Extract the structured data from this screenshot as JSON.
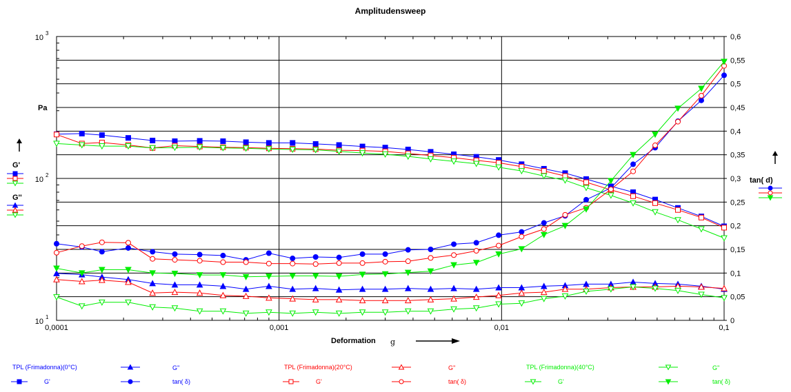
{
  "chart_data": {
    "type": "line",
    "title": "Amplitudensweep",
    "xlabel": "Deformation",
    "xlabel_symbol": "g",
    "x_scale": "log",
    "xlim": [
      0.0001,
      0.1
    ],
    "x_tick_labels": [
      "0,0001",
      "0,001",
      "0,01",
      "0,1"
    ],
    "y_left": {
      "scale": "log",
      "ylim": [
        10,
        1000
      ],
      "unit": "Pa",
      "tick_bases": [
        "10",
        "10",
        "10"
      ],
      "tick_exponents": [
        "1",
        "2",
        "3"
      ],
      "labels": [
        "G'",
        "G''"
      ]
    },
    "y_right": {
      "scale": "linear",
      "ylim": [
        0,
        0.6
      ],
      "label": "tan(  d)",
      "tick_labels": [
        "0",
        "0,05",
        "0,1",
        "0,15",
        "0,2",
        "0,25",
        "0,3",
        "0,35",
        "0,4",
        "0,45",
        "0,5",
        "0,55",
        "0,6"
      ]
    },
    "grid": true,
    "x": [
      0.0001,
      0.00013,
      0.00016,
      0.00021,
      0.00027,
      0.00034,
      0.00044,
      0.00056,
      0.00071,
      0.0009,
      0.00115,
      0.00146,
      0.00186,
      0.00237,
      0.003,
      0.0038,
      0.0048,
      0.0061,
      0.0077,
      0.0097,
      0.0123,
      0.0155,
      0.0193,
      0.024,
      0.031,
      0.039,
      0.049,
      0.062,
      0.079,
      0.1
    ],
    "groups": [
      {
        "name": "TPL (Frimadonna)(0°C)",
        "color": "#0000ff"
      },
      {
        "name": "TPL (Frimadonna)(20°C)",
        "color": "#ff0000"
      },
      {
        "name": "TPL (Frimadonna)(40°C)",
        "color": "#00ee00"
      }
    ],
    "series": [
      {
        "name": "G'",
        "group": 0,
        "axis": "left",
        "marker": "square-filled",
        "color": "#0000ff",
        "values": [
          205,
          207,
          202,
          193,
          185,
          183,
          184,
          183,
          180,
          178,
          178,
          175,
          172,
          168,
          165,
          160,
          154,
          148,
          142,
          135,
          126,
          117,
          109,
          99,
          88,
          80,
          71,
          62,
          54,
          46
        ]
      },
      {
        "name": "G'",
        "group": 1,
        "axis": "left",
        "marker": "square-open",
        "color": "#ff0000",
        "values": [
          204,
          176,
          179,
          172,
          164,
          170,
          168,
          166,
          165,
          163,
          162,
          161,
          158,
          157,
          155,
          150,
          145,
          140,
          134,
          129,
          121,
          113,
          104,
          94,
          83,
          75,
          67,
          60,
          53,
          45
        ]
      },
      {
        "name": "G'",
        "group": 2,
        "axis": "left",
        "marker": "triangle-down-open",
        "color": "#00ee00",
        "values": [
          176,
          172,
          169,
          169,
          164,
          165,
          166,
          164,
          163,
          161,
          160,
          159,
          155,
          151,
          148,
          143,
          137,
          132,
          127,
          120,
          113,
          104,
          97,
          86,
          76,
          67,
          58,
          51,
          44,
          38
        ]
      },
      {
        "name": "G''",
        "group": 0,
        "axis": "left",
        "marker": "triangle-up-filled",
        "color": "#0000ff",
        "values": [
          21.4,
          21.0,
          20.2,
          19.4,
          18.2,
          17.8,
          17.8,
          17.4,
          16.6,
          17.4,
          16.6,
          16.8,
          16.4,
          16.6,
          16.6,
          16.8,
          16.6,
          16.8,
          16.6,
          17.0,
          17.0,
          17.4,
          17.6,
          18.0,
          18.0,
          18.6,
          18.2,
          18.0,
          17.4,
          16.6
        ]
      },
      {
        "name": "G''",
        "group": 1,
        "axis": "left",
        "marker": "triangle-up-open",
        "color": "#ff0000",
        "values": [
          19.4,
          18.8,
          19.2,
          18.6,
          15.6,
          15.8,
          15.6,
          15.0,
          14.8,
          14.4,
          14.2,
          14.0,
          14.0,
          13.8,
          13.8,
          13.8,
          14.0,
          14.2,
          14.6,
          15.0,
          15.6,
          15.8,
          16.6,
          16.6,
          17.0,
          17.2,
          17.2,
          17.4,
          17.2,
          16.8
        ]
      },
      {
        "name": "G''",
        "group": 2,
        "axis": "left",
        "marker": "triangle-down-open",
        "color": "#00ee00",
        "values": [
          14.6,
          12.6,
          13.4,
          13.4,
          12.4,
          12.2,
          11.6,
          11.6,
          11.2,
          11.4,
          11.2,
          11.4,
          11.2,
          11.4,
          11.4,
          11.6,
          11.6,
          12.0,
          12.2,
          13.0,
          13.2,
          14.2,
          14.8,
          16.0,
          16.6,
          17.2,
          16.8,
          16.2,
          15.2,
          14.4
        ]
      },
      {
        "name": "tan(  δ)",
        "group": 0,
        "axis": "right",
        "marker": "circle-filled",
        "color": "#0000ff",
        "values": [
          0.162,
          0.155,
          0.145,
          0.153,
          0.145,
          0.14,
          0.139,
          0.137,
          0.128,
          0.142,
          0.131,
          0.134,
          0.133,
          0.14,
          0.14,
          0.149,
          0.15,
          0.161,
          0.164,
          0.18,
          0.187,
          0.206,
          0.221,
          0.255,
          0.28,
          0.33,
          0.365,
          0.421,
          0.465,
          0.518
        ]
      },
      {
        "name": "tan(  δ)",
        "group": 1,
        "axis": "right",
        "marker": "circle-open",
        "color": "#ff0000",
        "values": [
          0.143,
          0.157,
          0.165,
          0.164,
          0.13,
          0.128,
          0.126,
          0.123,
          0.123,
          0.12,
          0.12,
          0.119,
          0.121,
          0.121,
          0.124,
          0.125,
          0.132,
          0.138,
          0.147,
          0.158,
          0.177,
          0.193,
          0.223,
          0.238,
          0.277,
          0.315,
          0.37,
          0.42,
          0.475,
          0.538
        ]
      },
      {
        "name": "tan(  δ)",
        "group": 2,
        "axis": "right",
        "marker": "triangle-down-filled",
        "color": "#00ee00",
        "values": [
          0.11,
          0.1,
          0.107,
          0.107,
          0.1,
          0.099,
          0.096,
          0.096,
          0.092,
          0.093,
          0.094,
          0.094,
          0.093,
          0.097,
          0.098,
          0.101,
          0.104,
          0.117,
          0.122,
          0.14,
          0.151,
          0.181,
          0.2,
          0.235,
          0.295,
          0.35,
          0.393,
          0.448,
          0.49,
          0.547
        ]
      }
    ]
  },
  "legend": {
    "bottom_labels": {
      "group0": "TPL (Frimadonna)(0°C)",
      "group1": "TPL (Frimadonna)(20°C)",
      "group2": "TPL (Frimadonna)(40°C)",
      "g1": "G'",
      "g2": "G''",
      "tan": "tan(  δ)"
    }
  }
}
